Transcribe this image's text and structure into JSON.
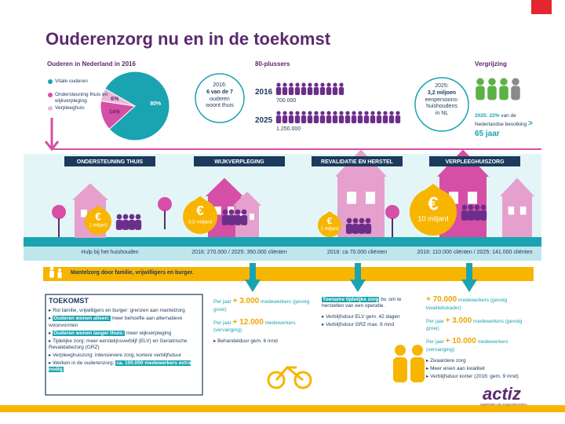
{
  "header": {
    "title": "Ouderenzorg nu en in de toekomst"
  },
  "chart_data": {
    "type": "pie",
    "title": "Ouderen in Nederland in 2016",
    "categories": [
      "Vitale ouderen",
      "Ondersteuning thuis en wijkverpleging",
      "Verpleeghuis"
    ],
    "values": [
      80,
      14,
      6
    ],
    "value_labels": [
      "80%",
      "14%",
      "6%"
    ],
    "colors": [
      "#1aa3b0",
      "#d64fa6",
      "#eab8d8"
    ]
  },
  "woont_thuis": [
    {
      "text": "2016:"
    },
    {
      "text": "6 van de 7",
      "style": "bold"
    },
    {
      "text": "ouderen"
    },
    {
      "text": "woont thuis"
    }
  ],
  "plussers": {
    "title": "80-plussers",
    "rows": [
      {
        "year": "2016",
        "count": "700.000"
      },
      {
        "year": "2025",
        "count": "1.250.000"
      }
    ]
  },
  "huishoudens": [
    {
      "text": "2025:"
    },
    {
      "text": "3,2 miljoen",
      "style": "bold"
    },
    {
      "text": "eenpersoons-"
    },
    {
      "text": "huishoudens"
    },
    {
      "text": "in NL"
    }
  ],
  "vergrijzing": {
    "title": "Vergrijzing",
    "text": [
      {
        "text": "2025: 22%",
        "style": "teal"
      },
      {
        "text": " van de Nederlandse bevolking "
      },
      {
        "text": "> 65 jaar",
        "style": "tealbig"
      }
    ]
  },
  "currency_symbol": "€",
  "sectors": [
    {
      "name": "ONDERSTEUNING THUIS",
      "budget": "1 miljard",
      "caption": "Hulp bij het huishouden"
    },
    {
      "name": "WIJKVERPLEGING",
      "budget": "3,5 miljard",
      "caption": "2016: 270.000 / 2025: 350.000 cliënten"
    },
    {
      "name": "REVALIDATIE EN HERSTEL",
      "budget": "1 miljard",
      "caption": "2016: ca 70.000 cliënten"
    },
    {
      "name": "VERPLEEGHUISZORG",
      "budget": "10 miljard",
      "caption": "2016: 110.000 cliënten / 2025: 141.000 cliënten"
    }
  ],
  "mantelzorg": "Mantelzorg door familie, vrijwilligers en burger.",
  "toekomst": {
    "title": "TOEKOMST",
    "items": [
      [
        {
          "text": "Rol familie, vrijwilligers en burger: grenzen aan mantelzorg"
        }
      ],
      [
        {
          "text": "Ouderen wonen alleen:",
          "style": "highlight"
        },
        {
          "text": " meer behoefte aan alternatieve woonvormen"
        }
      ],
      [
        {
          "text": "Ouderen wonen langer thuis:",
          "style": "highlight"
        },
        {
          "text": " meer wijkverpleging"
        }
      ],
      [
        {
          "text": "Tijdelijke zorg: meer eerstelijnsverblijf (ELV) en Geriatrische Revalidatiezorg (GRZ)"
        }
      ],
      [
        {
          "text": "Verpleeghuiszorg: intensievere zorg, kortere verblijfsduur"
        }
      ],
      [
        {
          "text": "Werken in de ouderenzorg: "
        },
        {
          "text": "ca. 100.000 medewerkers extra nodig",
          "style": "highlight"
        }
      ]
    ]
  },
  "columns": [
    [
      {
        "parts": [
          {
            "text": "Per jaar "
          },
          {
            "text": "+ 3.000",
            "style": "accent"
          },
          {
            "text": " medewerkers (gevolg groei)"
          }
        ]
      },
      {
        "parts": [
          {
            "text": "Per jaar "
          },
          {
            "text": "+ 12.000",
            "style": "accent"
          },
          {
            "text": " medewerkers (vervanging)"
          }
        ]
      },
      {
        "parts": [
          {
            "text": "Behandelduur gem. 6 mnd",
            "style": "dark"
          }
        ],
        "bullet": true
      }
    ],
    [
      {
        "parts": [
          {
            "text": "Toename tijdelijke zorg",
            "style": "highlight"
          },
          {
            "text": " bv. om te herstellen van een operatie.",
            "style": "dark"
          }
        ]
      },
      {
        "parts": [
          {
            "text": "Verblijfsduur ELV gem. 42 dagen",
            "style": "dark"
          }
        ],
        "bullet": true
      },
      {
        "parts": [
          {
            "text": "Verblijfsduur GRZ max. 6 mnd",
            "style": "dark"
          }
        ],
        "bullet": true
      }
    ],
    [
      {
        "parts": [
          {
            "text": "+ 70.000",
            "style": "accent"
          },
          {
            "text": " medewerkers (gevolg kwaliteitskader)"
          }
        ]
      },
      {
        "parts": [
          {
            "text": "Per jaar "
          },
          {
            "text": "+ 3.000",
            "style": "accent"
          },
          {
            "text": " medewerkers (gevolg groei)"
          }
        ]
      },
      {
        "parts": [
          {
            "text": "Per jaar "
          },
          {
            "text": "+ 10.000",
            "style": "accent"
          },
          {
            "text": " medewerkers (vervanging)"
          }
        ]
      },
      {
        "parts": [
          {
            "text": "Zwaardere zorg",
            "style": "dark"
          }
        ],
        "bullet": true
      },
      {
        "parts": [
          {
            "text": "Meer eisen aan kwaliteit",
            "style": "dark"
          }
        ],
        "bullet": true
      },
      {
        "parts": [
          {
            "text": "Verblijfsduur korter (2016: gem. 9 mnd)",
            "style": "dark"
          }
        ],
        "bullet": true
      }
    ]
  ],
  "logo": {
    "name": "actiz",
    "tagline": "organisatie van zorgondernemers"
  }
}
